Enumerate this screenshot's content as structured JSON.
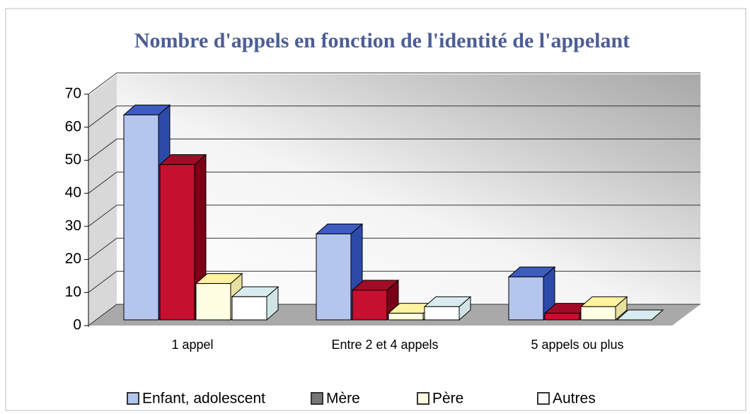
{
  "chart_data": {
    "type": "bar3d",
    "title": "Nombre d'appels en fonction de l'identité de l'appelant",
    "categories": [
      "1 appel",
      "Entre 2 et 4 appels",
      "5 appels ou plus"
    ],
    "series": [
      {
        "name": "Enfant, adolescent",
        "color": "#b4c6ef",
        "values": [
          62,
          26,
          13
        ]
      },
      {
        "name": "Mère",
        "color": "#c5102f",
        "values": [
          47,
          9,
          2
        ]
      },
      {
        "name": "Père",
        "color": "#fffde2",
        "values": [
          11,
          2,
          4
        ]
      },
      {
        "name": "Autres",
        "color": "#ffffff",
        "values": [
          7,
          4,
          0
        ]
      }
    ],
    "ylim": [
      0,
      70
    ],
    "yticks": [
      0,
      10,
      20,
      30,
      40,
      50,
      60,
      70
    ],
    "grid": true
  }
}
